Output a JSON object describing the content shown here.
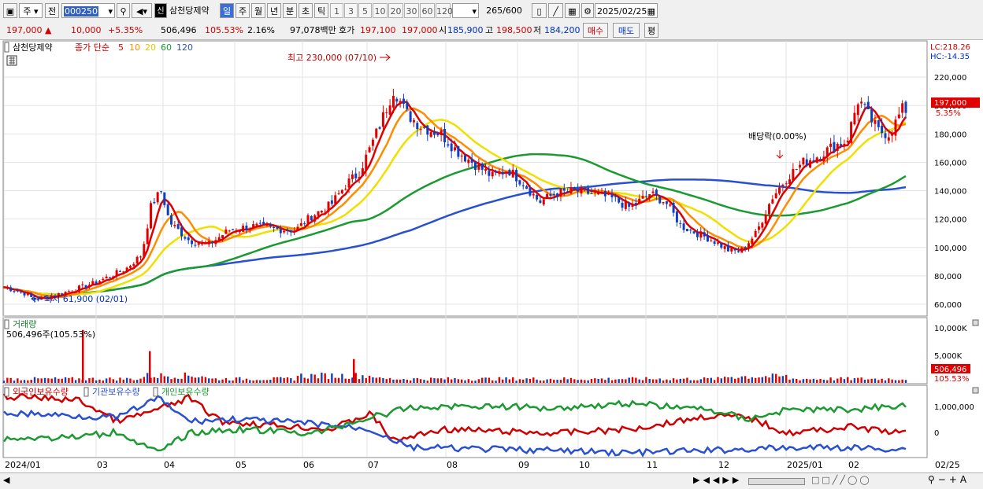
{
  "toolbar": {
    "market": "주",
    "period_btn": "전",
    "code": "000250",
    "company": "삼천당제약",
    "company_badge": "신",
    "tf_tabs": [
      "일",
      "주",
      "월",
      "년",
      "분",
      "초",
      "틱"
    ],
    "n_tabs": [
      "1",
      "3",
      "5",
      "10",
      "20",
      "30",
      "60",
      "120"
    ],
    "count": "265",
    "count_total": "/600",
    "date": "2025/02/25"
  },
  "info": {
    "price": "197,000",
    "change": "10,000",
    "change_pct": "+5.35%",
    "volume": "506,496",
    "vol_ratio": "105.53%",
    "turnover": "2.16%",
    "amount": "97,078백만",
    "ask_label": "호가",
    "ask1": "197,100",
    "ask2": "197,000",
    "open_label": "시",
    "open": "185,900",
    "high_label": "고",
    "high": "198,500",
    "low_label": "저",
    "low": "184,200",
    "buy": "매수",
    "sell": "매도",
    "eval": "평"
  },
  "price_panel": {
    "legend_name": "삼천당제약",
    "legend_ma": "종가 단순",
    "ma_periods": [
      "5",
      "10",
      "20",
      "60",
      "120"
    ],
    "lc": "LC:218.26",
    "hc": "HC:-14.35",
    "high_note": "최고 230,000 (07/10)",
    "low_note": "최저 61,900 (02/01)",
    "dividend_note": "배당락(0.00%)",
    "price_tag": "197,000",
    "pct_tag": "5.35%",
    "y_ticks": [
      "220,000",
      "200,000",
      "180,000",
      "160,000",
      "140,000",
      "120,000",
      "100,000",
      "80,000",
      "60,000"
    ]
  },
  "volume_panel": {
    "title": "거래량",
    "value_label": "506,496주(105.53%)",
    "y_ticks": [
      "10,000K",
      "5,000K"
    ],
    "tag_value": "506,496",
    "tag_pct": "105.53%"
  },
  "holding_panel": {
    "series": [
      "외국인보유수량",
      "기관보유수량",
      "개인보유수량"
    ],
    "y_ticks": [
      "1,000,000",
      "0"
    ]
  },
  "x_axis": [
    "2024/01",
    "03",
    "04",
    "05",
    "06",
    "07",
    "08",
    "09",
    "10",
    "11",
    "12",
    "2025/01",
    "02",
    "02/25"
  ],
  "colors": {
    "ma5": "#e00000",
    "ma10": "#ff8c00",
    "ma20": "#f0e000",
    "ma60": "#1a9a30",
    "ma120": "#2850d0",
    "up": "#e00000",
    "down": "#1040c0"
  },
  "chart_data": {
    "type": "line",
    "title": "삼천당제약",
    "x": [
      "2024/01",
      "03",
      "04",
      "05",
      "06",
      "07",
      "08",
      "09",
      "10",
      "11",
      "12",
      "2025/01",
      "02"
    ],
    "series": [
      {
        "name": "종가",
        "values": [
          70000,
          90000,
          125000,
          110000,
          118000,
          185000,
          180000,
          150000,
          140000,
          135000,
          100000,
          165000,
          197000
        ]
      },
      {
        "name": "60",
        "values": [
          72000,
          75000,
          85000,
          100000,
          112000,
          130000,
          150000,
          165000,
          150000,
          138000,
          122000,
          125000,
          145000
        ]
      },
      {
        "name": "120",
        "values": [
          72000,
          72000,
          75000,
          82000,
          90000,
          100000,
          120000,
          135000,
          142000,
          145000,
          145000,
          140000,
          141000
        ]
      }
    ],
    "ylim": [
      55000,
      235000
    ],
    "volume_ylim": [
      0,
      11000000
    ],
    "volume_highlights": [
      {
        "x": "03",
        "value": 10000000
      },
      {
        "x": "04",
        "value": 6000000
      },
      {
        "x": "07",
        "value": 4500000
      }
    ]
  }
}
